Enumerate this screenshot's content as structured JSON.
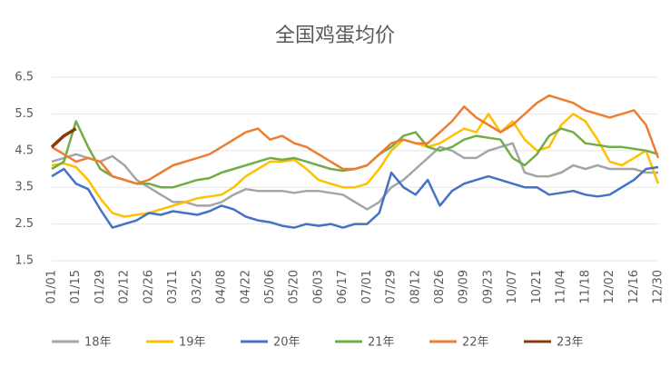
{
  "chart_data": {
    "type": "line",
    "title": "全国鸡蛋均价",
    "categories": [
      "01/01",
      null,
      "01/15",
      null,
      "01/29",
      null,
      "02/12",
      null,
      "02/26",
      null,
      "03/11",
      null,
      "03/25",
      null,
      "04/08",
      null,
      "04/22",
      null,
      "05/06",
      null,
      "05/20",
      null,
      "06/03",
      null,
      "06/17",
      null,
      "07/01",
      null,
      "07/29",
      null,
      "08/12",
      null,
      "08/26",
      null,
      "09/09",
      null,
      "09/23",
      null,
      "10/07",
      null,
      "10/21",
      null,
      "11/04",
      null,
      "11/18",
      null,
      "12/02",
      null,
      "12/16",
      null,
      "12/30"
    ],
    "ylim": [
      1.5,
      6.5
    ],
    "yticks": [
      1.5,
      2.5,
      3.5,
      4.5,
      5.5,
      6.5
    ],
    "grid": true,
    "series": [
      {
        "name": "18年",
        "color": "#a5a5a5",
        "values": [
          4.2,
          4.3,
          4.4,
          4.3,
          4.2,
          4.35,
          4.1,
          3.7,
          3.5,
          3.3,
          3.1,
          3.1,
          3.0,
          3.0,
          3.1,
          3.3,
          3.45,
          3.4,
          3.4,
          3.4,
          3.35,
          3.4,
          3.4,
          3.35,
          3.3,
          3.1,
          2.9,
          3.1,
          3.5,
          3.7,
          4.0,
          4.3,
          4.6,
          4.5,
          4.3,
          4.3,
          4.5,
          4.6,
          4.7,
          3.9,
          3.8,
          3.8,
          3.9,
          4.1,
          4.0,
          4.1,
          4.0,
          4.0,
          4.0,
          3.9,
          3.9
        ]
      },
      {
        "name": "19年",
        "color": "#ffc000",
        "values": [
          4.1,
          4.15,
          4.05,
          3.7,
          3.2,
          2.8,
          2.7,
          2.75,
          2.8,
          2.9,
          3.0,
          3.1,
          3.2,
          3.25,
          3.3,
          3.5,
          3.8,
          4.0,
          4.2,
          4.2,
          4.25,
          4.0,
          3.7,
          3.6,
          3.5,
          3.5,
          3.6,
          4.0,
          4.5,
          4.8,
          4.7,
          4.6,
          4.7,
          4.9,
          5.1,
          5.0,
          5.5,
          5.0,
          5.3,
          4.8,
          4.5,
          4.6,
          5.2,
          5.5,
          5.3,
          4.8,
          4.2,
          4.1,
          4.3,
          4.5,
          3.6
        ]
      },
      {
        "name": "20年",
        "color": "#4472c4",
        "values": [
          3.8,
          4.0,
          3.6,
          3.45,
          2.9,
          2.4,
          2.5,
          2.6,
          2.8,
          2.75,
          2.85,
          2.8,
          2.75,
          2.85,
          3.0,
          2.9,
          2.7,
          2.6,
          2.55,
          2.45,
          2.4,
          2.5,
          2.45,
          2.5,
          2.4,
          2.5,
          2.5,
          2.8,
          3.9,
          3.5,
          3.3,
          3.7,
          3.0,
          3.4,
          3.6,
          3.7,
          3.8,
          3.7,
          3.6,
          3.5,
          3.5,
          3.3,
          3.35,
          3.4,
          3.3,
          3.25,
          3.3,
          3.5,
          3.7,
          4.0,
          4.05
        ]
      },
      {
        "name": "21年",
        "color": "#70ad47",
        "values": [
          4.0,
          4.2,
          5.3,
          4.6,
          4.0,
          3.8,
          3.7,
          3.6,
          3.6,
          3.5,
          3.5,
          3.6,
          3.7,
          3.75,
          3.9,
          4.0,
          4.1,
          4.2,
          4.3,
          4.25,
          4.3,
          4.2,
          4.1,
          4.0,
          3.95,
          4.0,
          4.1,
          4.4,
          4.6,
          4.9,
          5.0,
          4.6,
          4.5,
          4.6,
          4.8,
          4.9,
          4.85,
          4.8,
          4.3,
          4.1,
          4.4,
          4.9,
          5.1,
          5.0,
          4.7,
          4.65,
          4.6,
          4.6,
          4.55,
          4.5,
          4.4
        ]
      },
      {
        "name": "22年",
        "color": "#ed7d31",
        "values": [
          4.6,
          4.4,
          4.2,
          4.3,
          4.2,
          3.8,
          3.7,
          3.6,
          3.7,
          3.9,
          4.1,
          4.2,
          4.3,
          4.4,
          4.6,
          4.8,
          5.0,
          5.1,
          4.8,
          4.9,
          4.7,
          4.6,
          4.4,
          4.2,
          4.0,
          4.0,
          4.1,
          4.4,
          4.7,
          4.8,
          4.7,
          4.7,
          5.0,
          5.3,
          5.7,
          5.4,
          5.2,
          5.0,
          5.2,
          5.5,
          5.8,
          6.0,
          5.9,
          5.8,
          5.6,
          5.5,
          5.4,
          5.5,
          5.6,
          5.2,
          4.3
        ]
      },
      {
        "name": "23年",
        "color": "#843c0c",
        "values": [
          4.6,
          4.9,
          5.1,
          null,
          null,
          null,
          null,
          null,
          null,
          null,
          null,
          null,
          null,
          null,
          null,
          null,
          null,
          null,
          null,
          null,
          null,
          null,
          null,
          null,
          null,
          null,
          null,
          null,
          null,
          null,
          null,
          null,
          null,
          null,
          null,
          null,
          null,
          null,
          null,
          null,
          null,
          null,
          null,
          null,
          null,
          null,
          null,
          null,
          null,
          null,
          null
        ]
      }
    ]
  }
}
